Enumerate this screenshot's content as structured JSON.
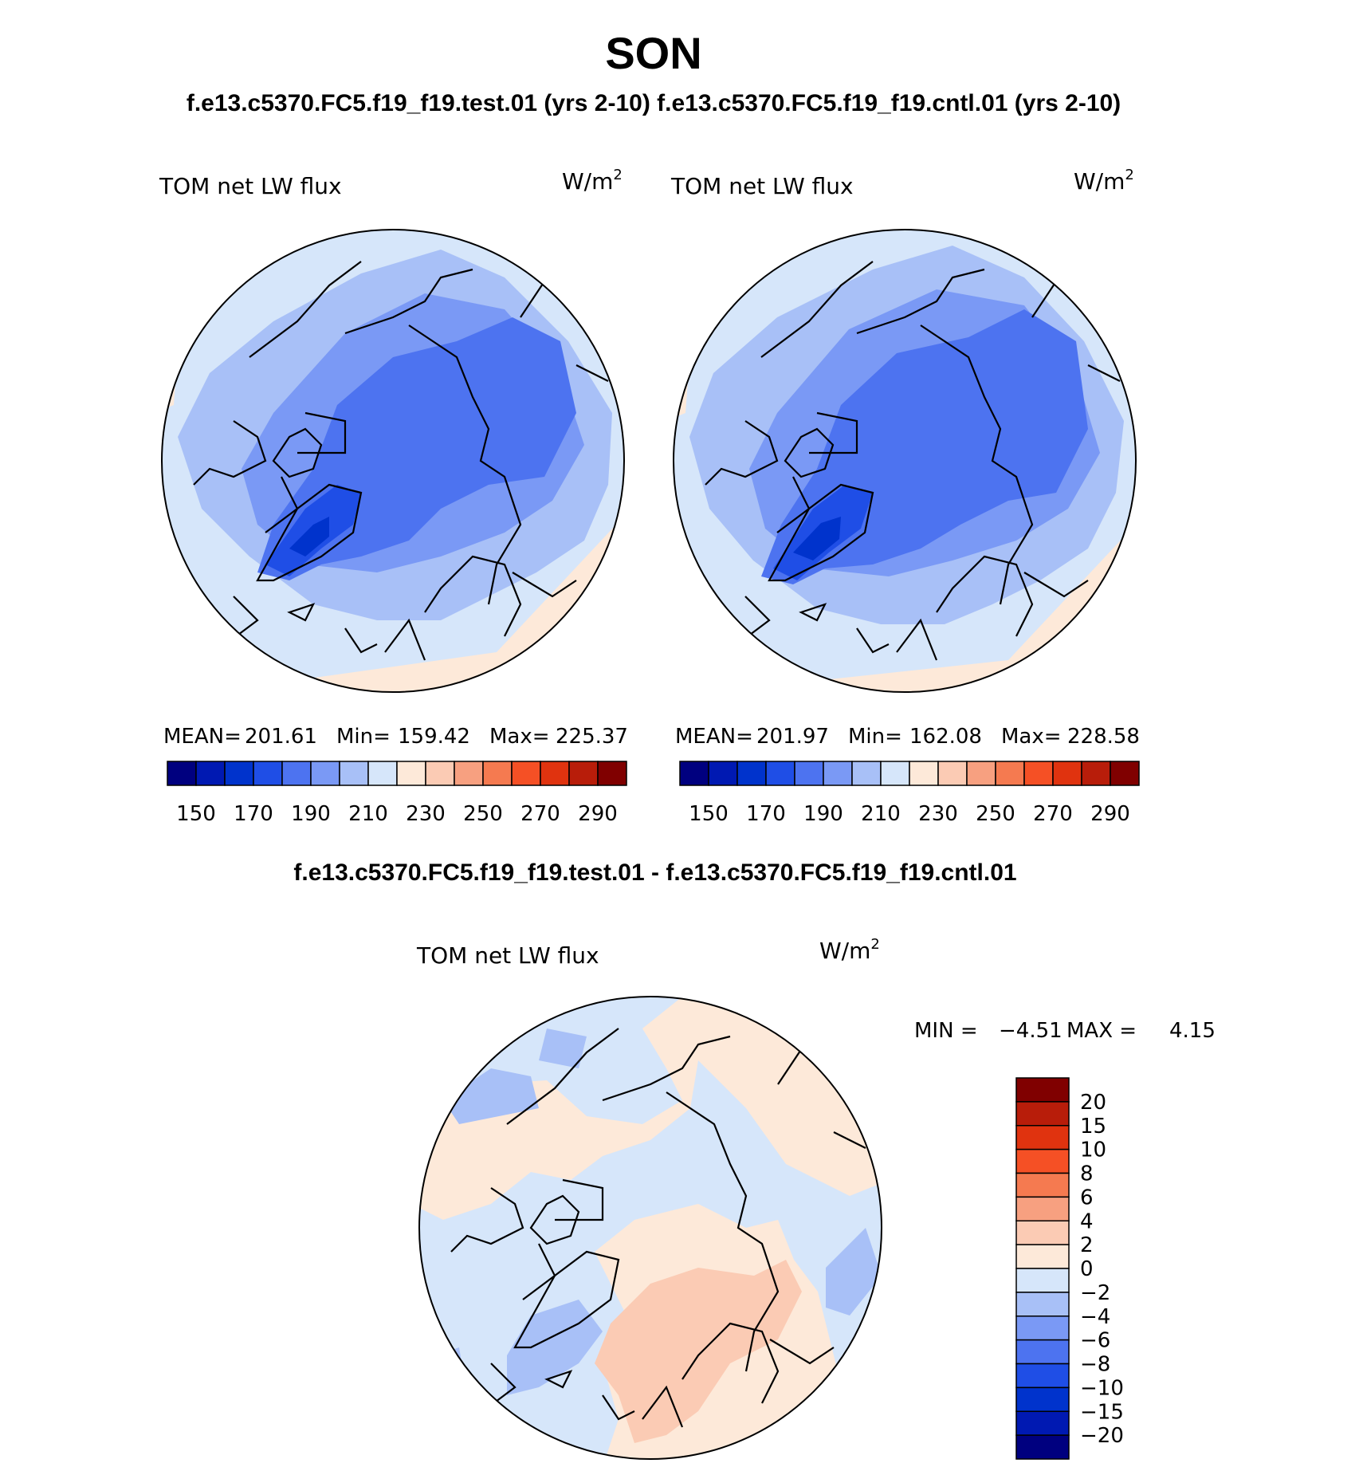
{
  "figure": {
    "season": "SON",
    "subtitle": "f.e13.c5370.FC5.f19_f19.test.01 (yrs 2-10) f.e13.c5370.FC5.f19_f19.cntl.01 (yrs 2-10)",
    "diff_title": "f.e13.c5370.FC5.f19_f19.test.01 - f.e13.c5370.FC5.f19_f19.cntl.01"
  },
  "panels": [
    {
      "variable": "TOM net LW flux",
      "units_base": "W/m",
      "units_exp": "2",
      "stats": {
        "mean_label": "MEAN=",
        "mean": "201.61",
        "min_label": "Min=",
        "min": "159.42",
        "max_label": "Max=",
        "max": "225.37"
      }
    },
    {
      "variable": "TOM net LW flux",
      "units_base": "W/m",
      "units_exp": "2",
      "stats": {
        "mean_label": "MEAN=",
        "mean": "201.97",
        "min_label": "Min=",
        "min": "162.08",
        "max_label": "Max=",
        "max": "228.58"
      }
    }
  ],
  "diff_panel": {
    "variable": "TOM net LW flux",
    "units_base": "W/m",
    "units_exp": "2",
    "min_label": "MIN =",
    "min": "−4.51",
    "max_label": "MAX =",
    "max": "4.15"
  },
  "colorbars": {
    "absolute": {
      "colors": [
        "#00007f",
        "#0019b2",
        "#0033cc",
        "#1f4ee6",
        "#4d73f0",
        "#7a99f5",
        "#a8c0f7",
        "#d6e6fa",
        "#fde9d9",
        "#fbcbb4",
        "#f7a080",
        "#f57a50",
        "#f55025",
        "#e0330f",
        "#b81d0a",
        "#800000"
      ],
      "tick_labels": [
        "150",
        "170",
        "190",
        "210",
        "230",
        "250",
        "270",
        "290"
      ]
    },
    "difference": {
      "colors": [
        "#00007f",
        "#0019b2",
        "#0033cc",
        "#1f4ee6",
        "#4d73f0",
        "#7a99f5",
        "#a8c0f7",
        "#d6e6fa",
        "#fde9d9",
        "#fbcbb4",
        "#f7a080",
        "#f57a50",
        "#f55025",
        "#e0330f",
        "#b81d0a",
        "#800000"
      ],
      "tick_labels": [
        "20",
        "15",
        "10",
        "8",
        "6",
        "4",
        "2",
        "0",
        "−2",
        "−4",
        "−6",
        "−8",
        "−10",
        "−15",
        "−20"
      ]
    }
  },
  "map_colors": {
    "lvl_light": "#d6e6fa",
    "lvl_pale": "#a8c0f7",
    "lvl_mid": "#7a99f5",
    "lvl_deep": "#4d73f0",
    "lvl_deeper": "#1f4ee6",
    "lvl_core": "#0033cc",
    "lvl_warm": "#fde9d9",
    "lvl_warm2": "#fbcbb4"
  }
}
